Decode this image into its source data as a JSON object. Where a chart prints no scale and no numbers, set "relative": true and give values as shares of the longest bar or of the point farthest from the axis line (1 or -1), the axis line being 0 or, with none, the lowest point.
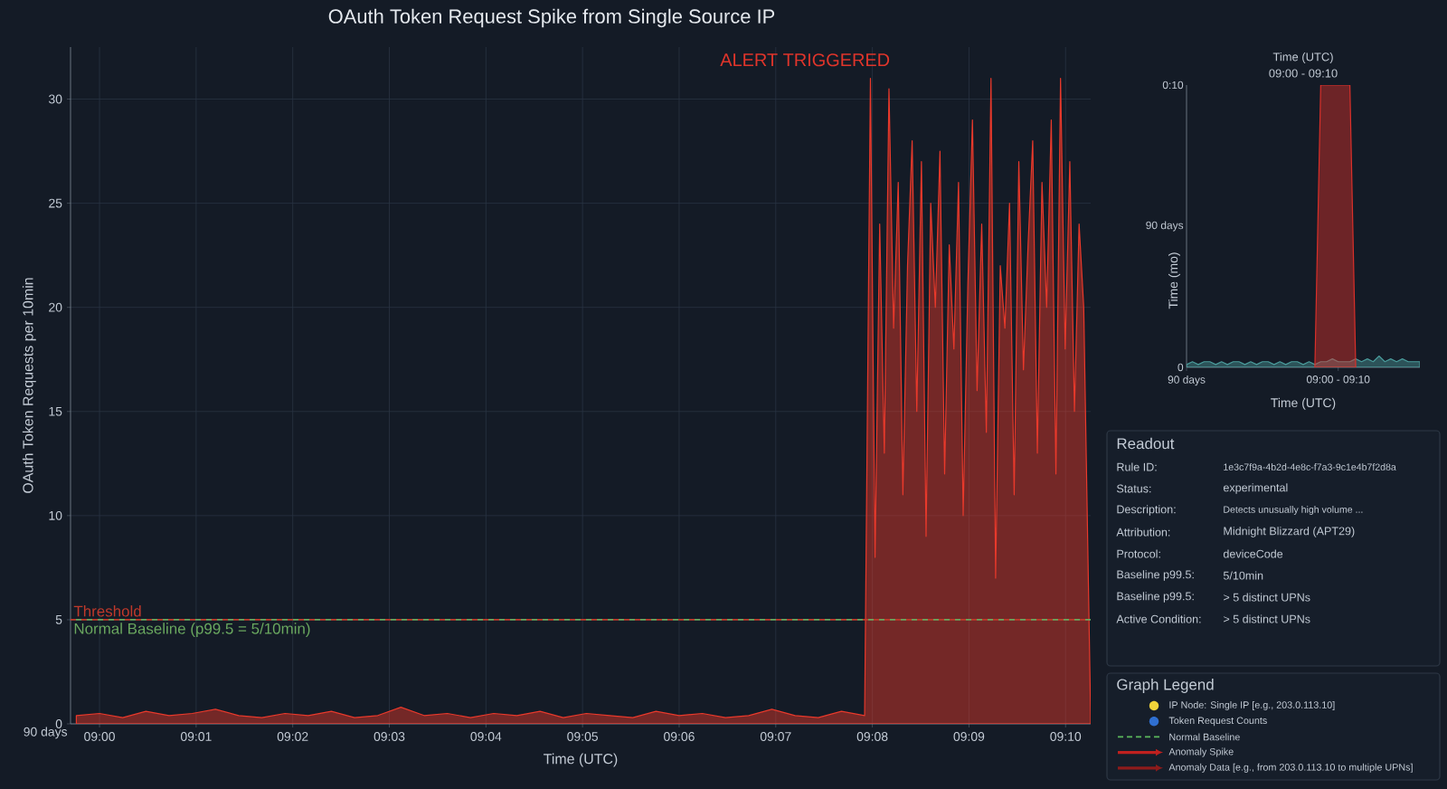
{
  "chart_data": [
    {
      "type": "area",
      "title": "OAuth Token Request Spike from Single Source IP",
      "xlabel": "Time (UTC)",
      "ylabel": "OAuth Token Requests per 10min",
      "xlim": [
        8.995,
        9.171
      ],
      "ylim": [
        0,
        32.5
      ],
      "xticks": [
        {
          "value": 9.0,
          "label": "09:00"
        },
        {
          "value": 9.016667,
          "label": "09:01"
        },
        {
          "value": 9.033333,
          "label": "09:02"
        },
        {
          "value": 9.05,
          "label": "09:03"
        },
        {
          "value": 9.066667,
          "label": "09:04"
        },
        {
          "value": 9.083333,
          "label": "09:05"
        },
        {
          "value": 9.1,
          "label": "09:06"
        },
        {
          "value": 9.116667,
          "label": "09:07"
        },
        {
          "value": 9.133333,
          "label": "09:08"
        },
        {
          "value": 9.15,
          "label": "09:09"
        },
        {
          "value": 9.166667,
          "label": "09:10"
        }
      ],
      "yticks": [
        0,
        5,
        10,
        15,
        20,
        25,
        30
      ],
      "grid": true,
      "series": [
        {
          "color": "#e8392b",
          "x": [
            8.996,
            9.0,
            9.004,
            9.008,
            9.012,
            9.016,
            9.02,
            9.024,
            9.028,
            9.032,
            9.036,
            9.04,
            9.044,
            9.048,
            9.052,
            9.056,
            9.06,
            9.064,
            9.068,
            9.072,
            9.076,
            9.08,
            9.084,
            9.088,
            9.092,
            9.096,
            9.1,
            9.104,
            9.108,
            9.112,
            9.116,
            9.12,
            9.124,
            9.128,
            9.132,
            9.133,
            9.1338,
            9.1346,
            9.1354,
            9.1362,
            9.137,
            9.1378,
            9.1386,
            9.1394,
            9.1402,
            9.141,
            9.1418,
            9.1426,
            9.1434,
            9.1442,
            9.145,
            9.1458,
            9.1466,
            9.1474,
            9.1482,
            9.149,
            9.1498,
            9.1506,
            9.1514,
            9.1522,
            9.153,
            9.1538,
            9.1546,
            9.1554,
            9.1562,
            9.157,
            9.1578,
            9.1586,
            9.1594,
            9.1602,
            9.161,
            9.1618,
            9.1626,
            9.1634,
            9.1642,
            9.165,
            9.1658,
            9.1666,
            9.1674,
            9.1682,
            9.169,
            9.1698,
            9.171
          ],
          "values": [
            0.4,
            0.5,
            0.3,
            0.6,
            0.4,
            0.5,
            0.7,
            0.4,
            0.3,
            0.5,
            0.4,
            0.6,
            0.3,
            0.4,
            0.8,
            0.4,
            0.5,
            0.3,
            0.5,
            0.4,
            0.6,
            0.3,
            0.5,
            0.4,
            0.3,
            0.6,
            0.4,
            0.5,
            0.3,
            0.4,
            0.7,
            0.4,
            0.3,
            0.6,
            0.4,
            31,
            8,
            24,
            13,
            30.5,
            19,
            26,
            11,
            22,
            28,
            15,
            27,
            9,
            25,
            20,
            27.5,
            12,
            23,
            18,
            26,
            10,
            21,
            29,
            16,
            24,
            14,
            31,
            7,
            22,
            19,
            25,
            11,
            27,
            17,
            23,
            28,
            13,
            26,
            20,
            29,
            12,
            31,
            18,
            27,
            15,
            24,
            20,
            0.3
          ]
        }
      ],
      "ref_lines": [
        {
          "axis": "y",
          "value": 5,
          "label": "Threshold",
          "color": "#c0392b",
          "line_style": "dashed"
        },
        {
          "axis": "y",
          "value": 5,
          "label": "Normal Baseline (p99.5 = 5/10min)",
          "color": "#6aa85f",
          "line_style": "dashed"
        }
      ],
      "annotations": [
        "ALERT TRIGGERED",
        "90 days"
      ]
    },
    {
      "type": "area",
      "title": "Time (UTC)",
      "subtitle": "09:00 - 09:10",
      "xlabel": "Time (UTC)",
      "ylabel": "Time (mo)",
      "relative": true,
      "categories": [
        "90 days",
        null,
        null,
        null,
        null,
        null,
        null,
        null,
        null,
        null,
        null,
        null,
        null,
        null,
        null,
        null,
        null,
        null,
        null,
        null,
        null,
        null,
        null,
        null,
        null,
        null,
        "09:00 - 09:10",
        null,
        null,
        null,
        null,
        null,
        null,
        null,
        null,
        null,
        null,
        null,
        null,
        null,
        null
      ],
      "annotations": [
        "0:10",
        "90 days",
        "0"
      ],
      "series": [
        {
          "color": "#4a9a9a",
          "values": [
            0.01,
            0.02,
            0.01,
            0.02,
            0.02,
            0.01,
            0.02,
            0.01,
            0.02,
            0.02,
            0.01,
            0.02,
            0.01,
            0.02,
            0.02,
            0.01,
            0.02,
            0.01,
            0.02,
            0.02,
            0.01,
            0.02,
            0.01,
            0.02,
            0.02,
            0.03,
            0.02,
            0.02,
            0.02,
            0.03,
            0.02,
            0.03,
            0.02,
            0.04,
            0.02,
            0.03,
            0.02,
            0.03,
            0.02,
            0.02,
            0.02
          ]
        },
        {
          "color": "#d9302a",
          "values": [
            null,
            null,
            null,
            null,
            null,
            null,
            null,
            null,
            null,
            null,
            null,
            null,
            null,
            null,
            null,
            null,
            null,
            null,
            null,
            null,
            null,
            null,
            0,
            1,
            1,
            1,
            1,
            1,
            1,
            0,
            null,
            null,
            null,
            null,
            null,
            null,
            null,
            null,
            null,
            null,
            null
          ]
        }
      ]
    },
    {
      "type": "other",
      "title": "Readout",
      "annotations": [
        "Rule ID:",
        "1e3c7f9a-4b2d-4e8c-f7a3-9c1e4b7f2d8a",
        "Status:",
        "experimental",
        "Description:",
        "Detects unusually high volume ...",
        "Attribution:",
        "Midnight Blizzard (APT29)",
        "Protocol:",
        "deviceCode",
        "Baseline p99.5:",
        "5/10min",
        "Baseline p99.5:",
        "> 5 distinct UPNs",
        "Active Condition:",
        "> 5 distinct UPNs"
      ]
    },
    {
      "type": "other",
      "title": "Graph Legend",
      "annotations": [
        "IP Node: Single IP [e.g., 203.0.113.10]",
        "Token Request Counts",
        "Normal Baseline",
        "Anomaly Spike",
        "Anomaly Data [e.g., from 203.0.113.10 to multiple UPNs]"
      ],
      "colors": [
        "#f2d43a",
        "#2f6fd0",
        "#5cb85c",
        "#c0211f",
        "#8e1b1b"
      ]
    }
  ]
}
